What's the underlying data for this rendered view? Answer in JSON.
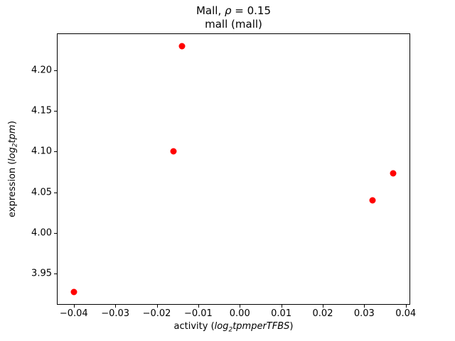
{
  "titles": {
    "line1_pre": "Mall, ",
    "rho": "ρ",
    "line1_post": " = 0.15",
    "line2": "mall (mall)"
  },
  "axis_labels": {
    "x_pre": "activity (",
    "x_log": "log",
    "x_sub": "2",
    "x_rest": "tpmperTFBS",
    "x_post": ")",
    "y_pre": "expression (",
    "y_log": "log",
    "y_sub": "2",
    "y_rest": "tpm",
    "y_post": ")"
  },
  "chart_data": {
    "type": "scatter",
    "title": "Mall, ρ = 0.15",
    "subtitle": "mall (mall)",
    "xlabel": "activity (log2 tpm per TFBS)",
    "ylabel": "expression (log2 tpm)",
    "x": [
      -0.04,
      -0.016,
      -0.014,
      0.032,
      0.037
    ],
    "y": [
      3.927,
      4.1,
      4.23,
      4.04,
      4.073
    ],
    "xlim": [
      -0.0439,
      0.0409
    ],
    "ylim": [
      3.912,
      4.245
    ],
    "xticks": [
      -0.04,
      -0.03,
      -0.02,
      -0.01,
      0.0,
      0.01,
      0.02,
      0.03,
      0.04
    ],
    "xtick_labels": [
      "−0.04",
      "−0.03",
      "−0.02",
      "−0.01",
      "0.00",
      "0.01",
      "0.02",
      "0.03",
      "0.04"
    ],
    "yticks": [
      3.95,
      4.0,
      4.05,
      4.1,
      4.15,
      4.2
    ],
    "ytick_labels": [
      "3.95",
      "4.00",
      "4.05",
      "4.10",
      "4.15",
      "4.20"
    ],
    "marker_color": "#ff0000",
    "axes_color": "#000000",
    "grid": false,
    "legend_position": "none"
  }
}
